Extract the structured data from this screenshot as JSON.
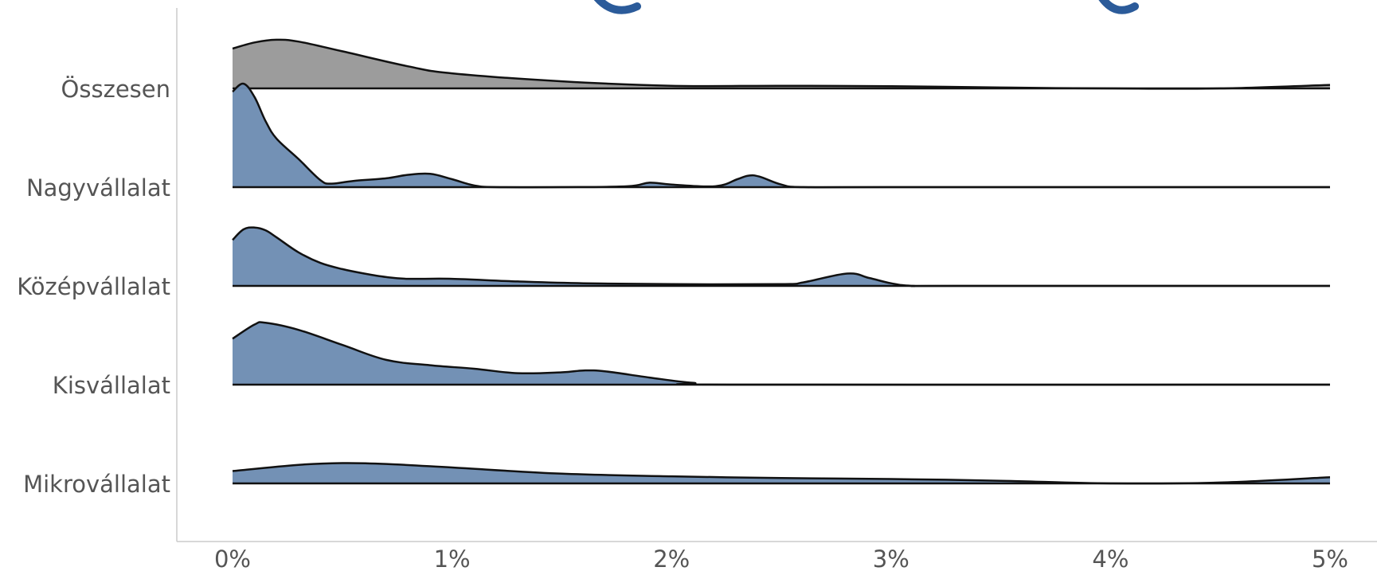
{
  "chart_data": {
    "type": "ridgeline",
    "title": "",
    "xlabel": "",
    "ylabel": "",
    "xlim": [
      0,
      5
    ],
    "x_tick_labels": [
      "0%",
      "1%",
      "2%",
      "3%",
      "4%",
      "5%"
    ],
    "x_ticks": [
      0,
      1,
      2,
      3,
      4,
      5
    ],
    "grid": false,
    "categories": [
      "Összesen",
      "Nagyvállalat",
      "Középvállalat",
      "Kisvállalat",
      "Mikrovállalat"
    ],
    "series": [
      {
        "name": "Összesen",
        "color": "#999999",
        "x": [
          0,
          0.1,
          0.2,
          0.3,
          0.5,
          0.8,
          1.0,
          1.5,
          2.0,
          2.5,
          3.0,
          3.5,
          4.0,
          4.5,
          5.0
        ],
        "density": [
          0.45,
          0.52,
          0.55,
          0.53,
          0.42,
          0.25,
          0.17,
          0.08,
          0.03,
          0.03,
          0.025,
          0.01,
          0.0,
          0.0,
          0.04
        ]
      },
      {
        "name": "Nagyvállalat",
        "color": "#6e8db3",
        "x": [
          0,
          0.05,
          0.1,
          0.15,
          0.2,
          0.3,
          0.4,
          0.45,
          0.55,
          0.7,
          0.8,
          0.9,
          1.0,
          1.1,
          1.2,
          1.5,
          1.8,
          1.9,
          2.0,
          2.2,
          2.3,
          2.35,
          2.4,
          2.5,
          2.6,
          3.0,
          5.0
        ],
        "density": [
          1.08,
          1.17,
          1.02,
          0.75,
          0.55,
          0.32,
          0.08,
          0.04,
          0.07,
          0.1,
          0.14,
          0.15,
          0.09,
          0.02,
          0.0,
          0.0,
          0.01,
          0.05,
          0.03,
          0.01,
          0.09,
          0.13,
          0.12,
          0.03,
          0.0,
          0.0,
          0.0
        ]
      },
      {
        "name": "Középvállalat",
        "color": "#6e8db3",
        "x": [
          0,
          0.05,
          0.1,
          0.15,
          0.2,
          0.3,
          0.4,
          0.5,
          0.6,
          0.7,
          0.8,
          1.0,
          1.3,
          1.6,
          2.0,
          2.5,
          2.6,
          2.8,
          2.9,
          3.0,
          3.1,
          3.3,
          5.0
        ],
        "density": [
          0.52,
          0.64,
          0.66,
          0.63,
          0.55,
          0.38,
          0.26,
          0.19,
          0.14,
          0.1,
          0.08,
          0.08,
          0.05,
          0.03,
          0.02,
          0.02,
          0.04,
          0.14,
          0.09,
          0.03,
          0.0,
          0.0,
          0.0
        ]
      },
      {
        "name": "Kisvállalat",
        "color": "#6e8db3",
        "x": [
          0,
          0.1,
          0.15,
          0.3,
          0.5,
          0.7,
          0.9,
          1.1,
          1.3,
          1.5,
          1.6,
          1.7,
          1.9,
          2.1,
          2.3,
          5.0
        ],
        "density": [
          0.52,
          0.68,
          0.7,
          0.62,
          0.45,
          0.28,
          0.22,
          0.18,
          0.13,
          0.14,
          0.16,
          0.15,
          0.08,
          0.02,
          0.0,
          0.0
        ]
      },
      {
        "name": "Mikrovállalat",
        "color": "#6e8db3",
        "x": [
          0,
          0.3,
          0.5,
          0.7,
          1.0,
          1.5,
          2.0,
          2.5,
          3.0,
          3.5,
          4.0,
          4.5,
          5.0
        ],
        "density": [
          0.14,
          0.21,
          0.23,
          0.22,
          0.18,
          0.11,
          0.08,
          0.06,
          0.05,
          0.03,
          0.0,
          0.01,
          0.07
        ]
      }
    ]
  }
}
